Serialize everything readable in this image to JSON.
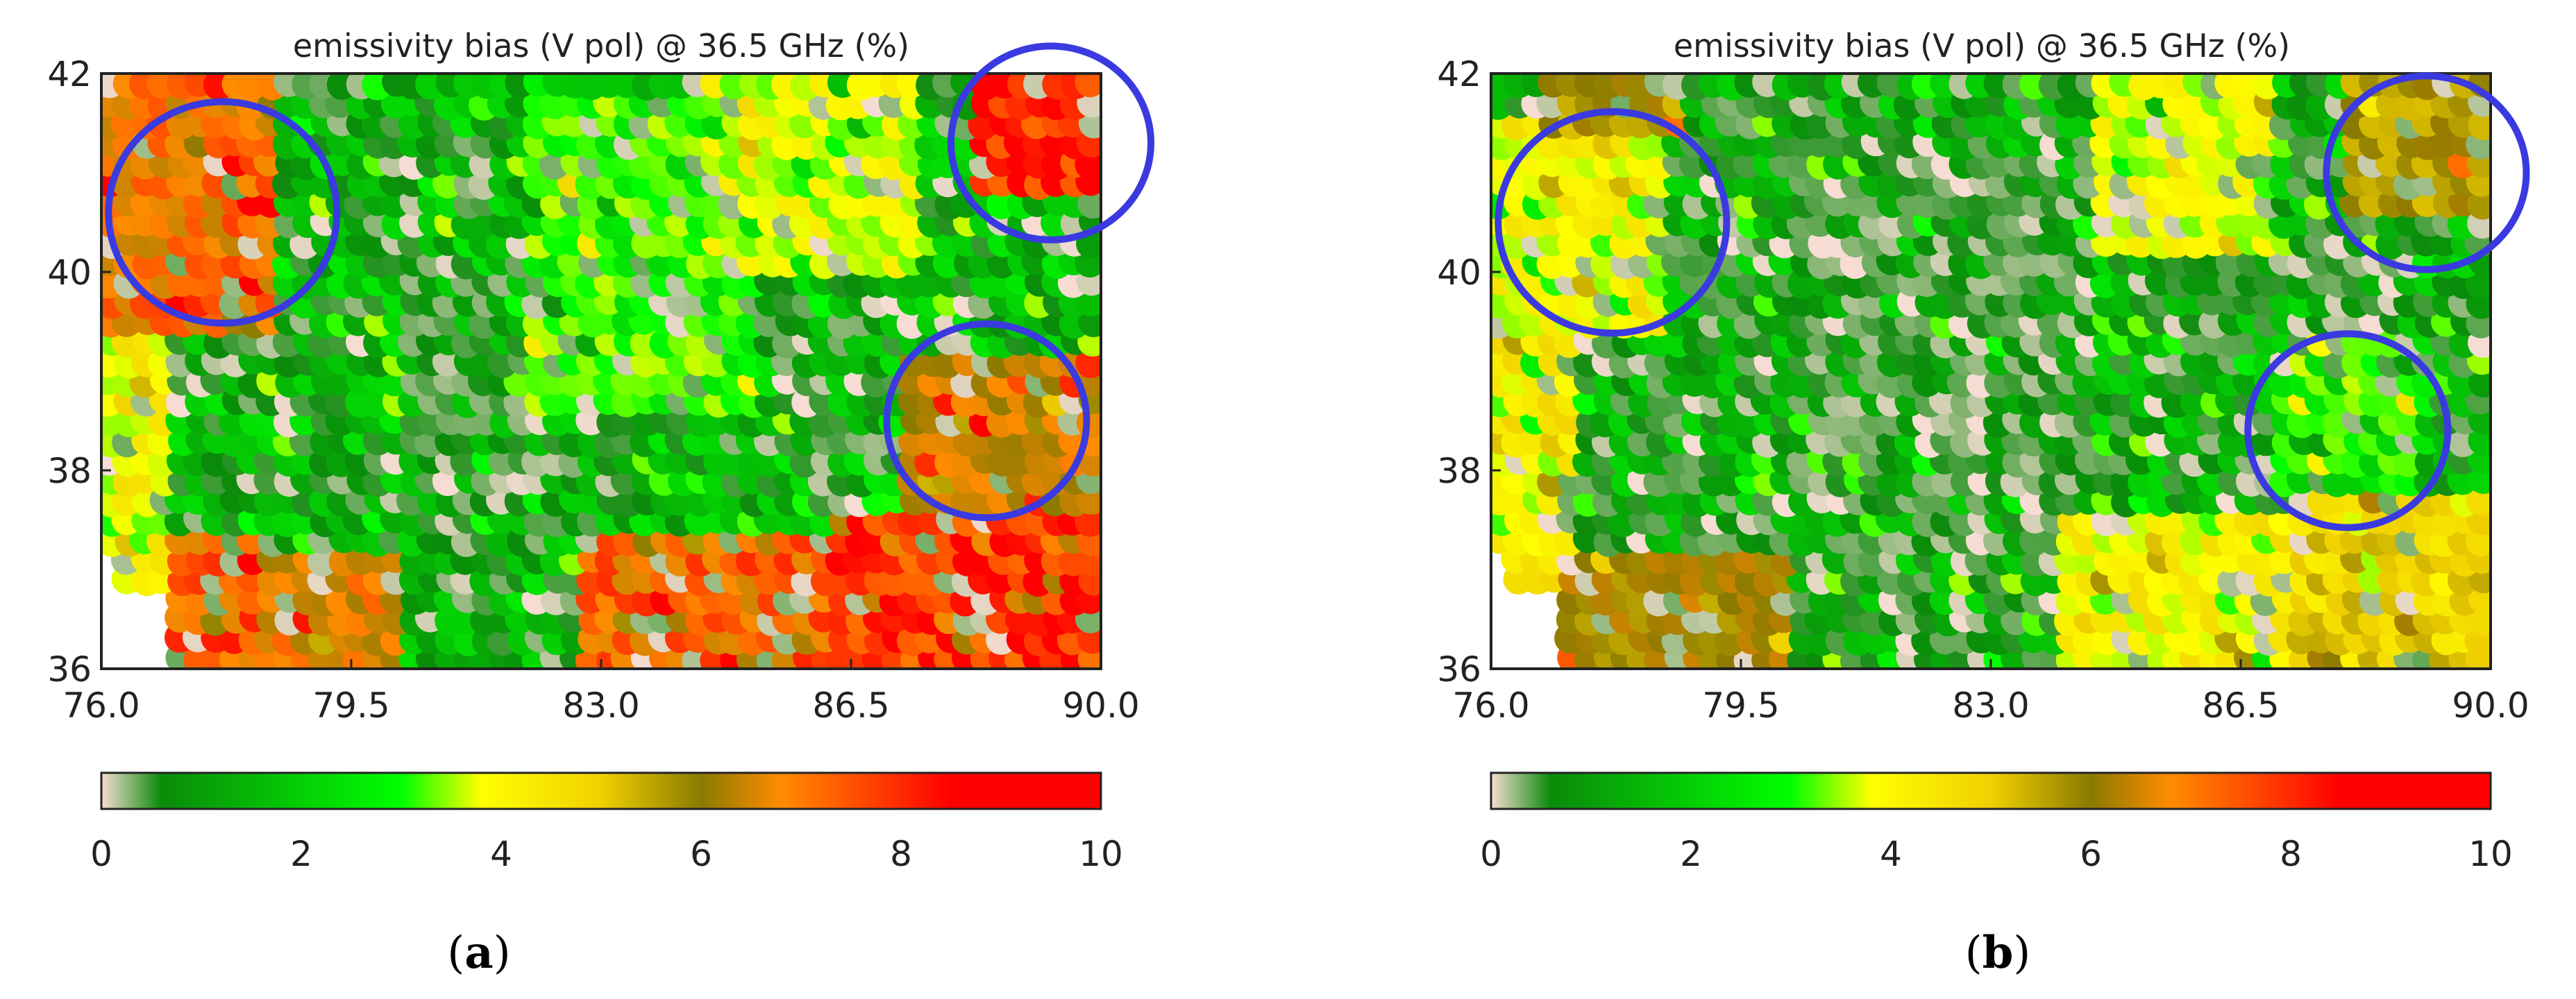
{
  "colors": {
    "colorbar_stops": [
      "#f6dcd2",
      "#0a8a0a",
      "#00ff00",
      "#ffff00",
      "#f0d000",
      "#8a7a00",
      "#ff8c00",
      "#ff0000"
    ],
    "circle": "#3a3ae0"
  },
  "chart_data": [
    {
      "type": "heatmap",
      "panel": "a",
      "caption_letter": "a",
      "title": "emissivity bias (V pol) @ 36.5 GHz (%)",
      "xlabel": "",
      "ylabel": "",
      "xlim": [
        76.0,
        90.0
      ],
      "ylim": [
        36,
        42
      ],
      "x_ticks": [
        "76.0",
        "79.5",
        "83.0",
        "86.5",
        "90.0"
      ],
      "y_ticks": [
        "36",
        "38",
        "40",
        "42"
      ],
      "colorbar": {
        "min": 0,
        "max": 10,
        "ticks": [
          "0",
          "2",
          "4",
          "6",
          "8",
          "10"
        ]
      },
      "marked_regions": [
        {
          "lon": 77.7,
          "lat": 40.6,
          "radius_lon": 1.6
        },
        {
          "lon": 89.3,
          "lat": 41.3,
          "radius_lon": 1.4
        },
        {
          "lon": 88.4,
          "lat": 38.5,
          "radius_lon": 1.4
        }
      ],
      "regions": [
        {
          "lon": [
            76.0,
            78.4
          ],
          "lat": [
            39.4,
            42.0
          ],
          "value": 8.6
        },
        {
          "lon": [
            76.0,
            77.0
          ],
          "lat": [
            36.8,
            39.4
          ],
          "value": 4.5
        },
        {
          "lon": [
            77.0,
            78.2
          ],
          "lat": [
            36.0,
            37.4
          ],
          "value": 9.0
        },
        {
          "lon": [
            78.2,
            80.2
          ],
          "lat": [
            36.0,
            37.2
          ],
          "value": 8.2
        },
        {
          "lon": [
            80.2,
            82.6
          ],
          "lat": [
            37.5,
            39.8
          ],
          "value": 1.4
        },
        {
          "lon": [
            82.0,
            85.2
          ],
          "lat": [
            38.7,
            41.8
          ],
          "value": 3.2
        },
        {
          "lon": [
            82.8,
            86.8
          ],
          "lat": [
            36.0,
            37.4
          ],
          "value": 8.8
        },
        {
          "lon": [
            86.3,
            90.0
          ],
          "lat": [
            36.0,
            37.6
          ],
          "value": 9.6
        },
        {
          "lon": [
            87.2,
            90.0
          ],
          "lat": [
            37.7,
            39.2
          ],
          "value": 7.9
        },
        {
          "lon": [
            88.2,
            90.0
          ],
          "lat": [
            40.8,
            42.0
          ],
          "value": 9.7
        },
        {
          "lon": [
            84.6,
            87.6
          ],
          "lat": [
            40.0,
            42.0
          ],
          "value": 4.1
        }
      ],
      "background_value": 1.8
    },
    {
      "type": "heatmap",
      "panel": "b",
      "caption_letter": "b",
      "title": "emissivity bias (V pol) @ 36.5 GHz (%)",
      "xlabel": "",
      "ylabel": "",
      "xlim": [
        76.0,
        90.0
      ],
      "ylim": [
        36,
        42
      ],
      "x_ticks": [
        "76.0",
        "79.5",
        "83.0",
        "86.5",
        "90.0"
      ],
      "y_ticks": [
        "36",
        "38",
        "40",
        "42"
      ],
      "colorbar": {
        "min": 0,
        "max": 10,
        "ticks": [
          "0",
          "2",
          "4",
          "6",
          "8",
          "10"
        ]
      },
      "marked_regions": [
        {
          "lon": 77.7,
          "lat": 40.5,
          "radius_lon": 1.6
        },
        {
          "lon": 89.1,
          "lat": 41.0,
          "radius_lon": 1.4
        },
        {
          "lon": 88.0,
          "lat": 38.4,
          "radius_lon": 1.4
        }
      ],
      "regions": [
        {
          "lon": [
            76.0,
            78.6
          ],
          "lat": [
            39.4,
            41.6
          ],
          "value": 4.4
        },
        {
          "lon": [
            76.0,
            77.2
          ],
          "lat": [
            36.8,
            39.4
          ],
          "value": 4.8
        },
        {
          "lon": [
            76.8,
            78.8
          ],
          "lat": [
            41.4,
            42.0
          ],
          "value": 6.8
        },
        {
          "lon": [
            77.0,
            80.2
          ],
          "lat": [
            36.0,
            37.2
          ],
          "value": 7.2
        },
        {
          "lon": [
            80.2,
            84.6
          ],
          "lat": [
            37.6,
            41.0
          ],
          "value": 1.2
        },
        {
          "lon": [
            84.4,
            87.0
          ],
          "lat": [
            40.2,
            42.0
          ],
          "value": 4.2
        },
        {
          "lon": [
            84.0,
            87.4
          ],
          "lat": [
            36.0,
            37.6
          ],
          "value": 4.6
        },
        {
          "lon": [
            87.2,
            90.0
          ],
          "lat": [
            36.0,
            37.8
          ],
          "value": 5.6
        },
        {
          "lon": [
            88.0,
            90.0
          ],
          "lat": [
            40.6,
            42.0
          ],
          "value": 6.8
        },
        {
          "lon": [
            87.0,
            89.2
          ],
          "lat": [
            37.8,
            39.4
          ],
          "value": 3.0
        }
      ],
      "background_value": 1.6
    }
  ]
}
